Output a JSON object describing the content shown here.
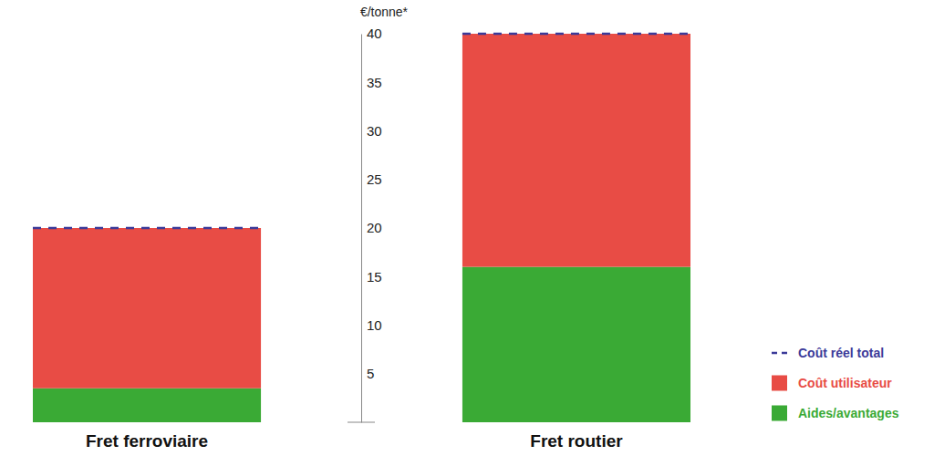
{
  "chart_data": {
    "type": "bar",
    "stacked": true,
    "y_label": "€/tonne*",
    "categories": [
      "Fret ferroviaire",
      "Fret routier"
    ],
    "series": [
      {
        "name": "Aides/avantages",
        "color": "#3aaa35",
        "values": [
          3.5,
          16
        ]
      },
      {
        "name": "Coût utilisateur",
        "color": "#e84c45",
        "values": [
          16.5,
          24
        ]
      },
      {
        "name": "Coût réel total",
        "color": "#3b3a99",
        "type": "line",
        "line_style": "dashed",
        "values": [
          20,
          40
        ]
      }
    ],
    "ylim": [
      0,
      40
    ],
    "yticks": [
      5,
      10,
      15,
      20,
      25,
      30,
      35,
      40
    ],
    "legend": "bottom-right"
  }
}
